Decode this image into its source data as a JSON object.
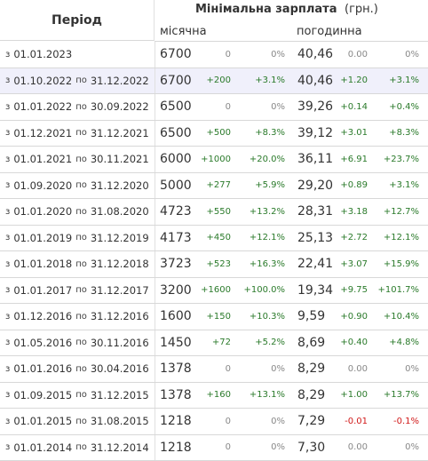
{
  "header": {
    "period": "Період",
    "title": "Мінімальна зарплата",
    "unit": "(грн.)",
    "monthly": "місячна",
    "hourly": "погодинна"
  },
  "colors": {
    "positive": "#2a7a2a",
    "zero": "#888888",
    "negative": "#d11a1a",
    "highlight": "#f0f0fb"
  },
  "rows": [
    {
      "from": "01.01.2023",
      "to": "",
      "month": "6700",
      "mdiff": "0",
      "mpct": "0%",
      "hour": "40,46",
      "hdiff": "0.00",
      "hpct": "0%"
    },
    {
      "from": "01.10.2022",
      "to": "31.12.2022",
      "month": "6700",
      "mdiff": "+200",
      "mpct": "+3.1%",
      "hour": "40,46",
      "hdiff": "+1.20",
      "hpct": "+3.1%"
    },
    {
      "from": "01.01.2022",
      "to": "30.09.2022",
      "month": "6500",
      "mdiff": "0",
      "mpct": "0%",
      "hour": "39,26",
      "hdiff": "+0.14",
      "hpct": "+0.4%"
    },
    {
      "from": "01.12.2021",
      "to": "31.12.2021",
      "month": "6500",
      "mdiff": "+500",
      "mpct": "+8.3%",
      "hour": "39,12",
      "hdiff": "+3.01",
      "hpct": "+8.3%"
    },
    {
      "from": "01.01.2021",
      "to": "30.11.2021",
      "month": "6000",
      "mdiff": "+1000",
      "mpct": "+20.0%",
      "hour": "36,11",
      "hdiff": "+6.91",
      "hpct": "+23.7%"
    },
    {
      "from": "01.09.2020",
      "to": "31.12.2020",
      "month": "5000",
      "mdiff": "+277",
      "mpct": "+5.9%",
      "hour": "29,20",
      "hdiff": "+0.89",
      "hpct": "+3.1%"
    },
    {
      "from": "01.01.2020",
      "to": "31.08.2020",
      "month": "4723",
      "mdiff": "+550",
      "mpct": "+13.2%",
      "hour": "28,31",
      "hdiff": "+3.18",
      "hpct": "+12.7%"
    },
    {
      "from": "01.01.2019",
      "to": "31.12.2019",
      "month": "4173",
      "mdiff": "+450",
      "mpct": "+12.1%",
      "hour": "25,13",
      "hdiff": "+2.72",
      "hpct": "+12.1%"
    },
    {
      "from": "01.01.2018",
      "to": "31.12.2018",
      "month": "3723",
      "mdiff": "+523",
      "mpct": "+16.3%",
      "hour": "22,41",
      "hdiff": "+3.07",
      "hpct": "+15.9%"
    },
    {
      "from": "01.01.2017",
      "to": "31.12.2017",
      "month": "3200",
      "mdiff": "+1600",
      "mpct": "+100.0%",
      "hour": "19,34",
      "hdiff": "+9.75",
      "hpct": "+101.7%"
    },
    {
      "from": "01.12.2016",
      "to": "31.12.2016",
      "month": "1600",
      "mdiff": "+150",
      "mpct": "+10.3%",
      "hour": "9,59",
      "hdiff": "+0.90",
      "hpct": "+10.4%"
    },
    {
      "from": "01.05.2016",
      "to": "30.11.2016",
      "month": "1450",
      "mdiff": "+72",
      "mpct": "+5.2%",
      "hour": "8,69",
      "hdiff": "+0.40",
      "hpct": "+4.8%"
    },
    {
      "from": "01.01.2016",
      "to": "30.04.2016",
      "month": "1378",
      "mdiff": "0",
      "mpct": "0%",
      "hour": "8,29",
      "hdiff": "0.00",
      "hpct": "0%"
    },
    {
      "from": "01.09.2015",
      "to": "31.12.2015",
      "month": "1378",
      "mdiff": "+160",
      "mpct": "+13.1%",
      "hour": "8,29",
      "hdiff": "+1.00",
      "hpct": "+13.7%"
    },
    {
      "from": "01.01.2015",
      "to": "31.08.2015",
      "month": "1218",
      "mdiff": "0",
      "mpct": "0%",
      "hour": "7,29",
      "hdiff": "-0.01",
      "hpct": "-0.1%"
    },
    {
      "from": "01.01.2014",
      "to": "31.12.2014",
      "month": "1218",
      "mdiff": "0",
      "mpct": "0%",
      "hour": "7,30",
      "hdiff": "0.00",
      "hpct": "0%"
    }
  ],
  "labels": {
    "from_prefix": "з",
    "to_prefix": "по"
  }
}
